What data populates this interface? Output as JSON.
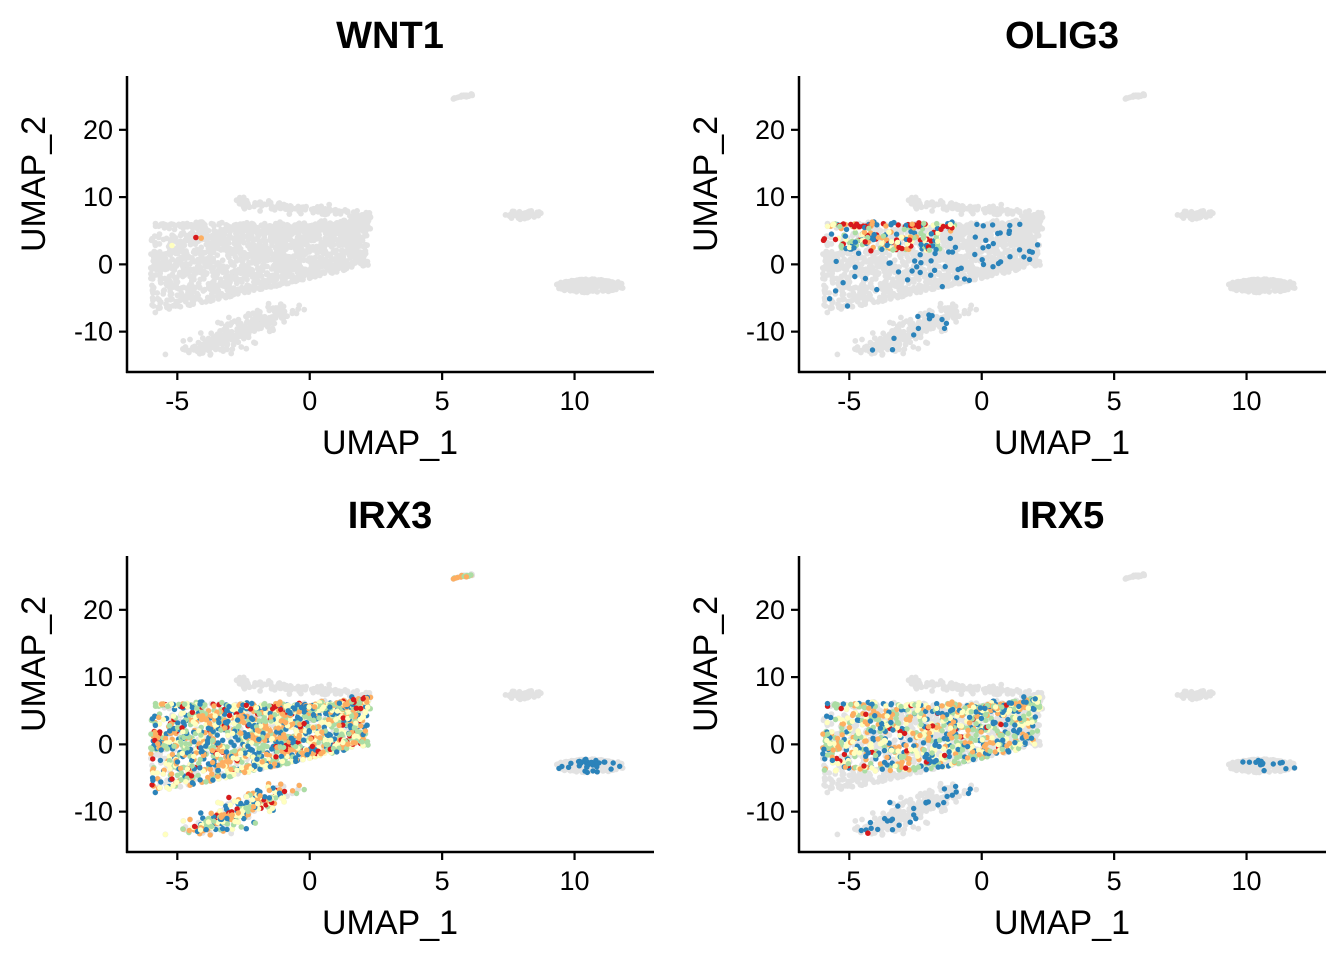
{
  "chart_data": [
    {
      "type": "scatter",
      "title": "WNT1",
      "xlabel": "UMAP_1",
      "ylabel": "UMAP_2",
      "xlim": [
        -6.9,
        13
      ],
      "ylim": [
        -16,
        28
      ],
      "xticks": [
        -5,
        0,
        5,
        10
      ],
      "xtick_labels": [
        "-5",
        "0",
        "5",
        "10"
      ],
      "yticks": [
        -10,
        0,
        10,
        20
      ],
      "ytick_labels": [
        "-10",
        "0",
        "10",
        "20"
      ],
      "background_color": "#e2e2e2",
      "grid": false,
      "expression_level": "very-sparse",
      "expressing_points": [
        {
          "x": -4.3,
          "y": 4.0,
          "color": "#d7191c"
        },
        {
          "x": -4.1,
          "y": 3.9,
          "color": "#fdae61"
        },
        {
          "x": -5.2,
          "y": 2.8,
          "color": "#ffffbf"
        }
      ]
    },
    {
      "type": "scatter",
      "title": "OLIG3",
      "xlabel": "UMAP_1",
      "ylabel": "UMAP_2",
      "xlim": [
        -6.9,
        13
      ],
      "ylim": [
        -16,
        28
      ],
      "xticks": [
        -5,
        0,
        5,
        10
      ],
      "xtick_labels": [
        "-5",
        "0",
        "5",
        "10"
      ],
      "yticks": [
        -10,
        0,
        10,
        20
      ],
      "ytick_labels": [
        "-10",
        "0",
        "10",
        "20"
      ],
      "background_color": "#e2e2e2",
      "grid": false,
      "expression_level": "dorsal-band",
      "expressing_points": []
    },
    {
      "type": "scatter",
      "title": "IRX3",
      "xlabel": "UMAP_1",
      "ylabel": "UMAP_2",
      "xlim": [
        -6.9,
        13
      ],
      "ylim": [
        -16,
        28
      ],
      "xticks": [
        -5,
        0,
        5,
        10
      ],
      "xtick_labels": [
        "-5",
        "0",
        "5",
        "10"
      ],
      "yticks": [
        -10,
        0,
        10,
        20
      ],
      "ytick_labels": [
        "-10",
        "0",
        "10",
        "20"
      ],
      "background_color": "#e2e2e2",
      "grid": false,
      "expression_level": "broad",
      "expressing_points": []
    },
    {
      "type": "scatter",
      "title": "IRX5",
      "xlabel": "UMAP_1",
      "ylabel": "UMAP_2",
      "xlim": [
        -6.9,
        13
      ],
      "ylim": [
        -16,
        28
      ],
      "xticks": [
        -5,
        0,
        5,
        10
      ],
      "xtick_labels": [
        "-5",
        "0",
        "5",
        "10"
      ],
      "yticks": [
        -10,
        0,
        10,
        20
      ],
      "ytick_labels": [
        "-10",
        "0",
        "10",
        "20"
      ],
      "background_color": "#e2e2e2",
      "grid": false,
      "expression_level": "moderate",
      "expressing_points": [
        {
          "x": -4.3,
          "y": -13.2,
          "color": "#d7191c"
        }
      ]
    }
  ],
  "palette": {
    "unexpressed": "#e2e2e2",
    "low": "#2b83ba",
    "mid_low": "#abdda4",
    "mid": "#ffffbf",
    "mid_high": "#fdae61",
    "high": "#d7191c"
  }
}
